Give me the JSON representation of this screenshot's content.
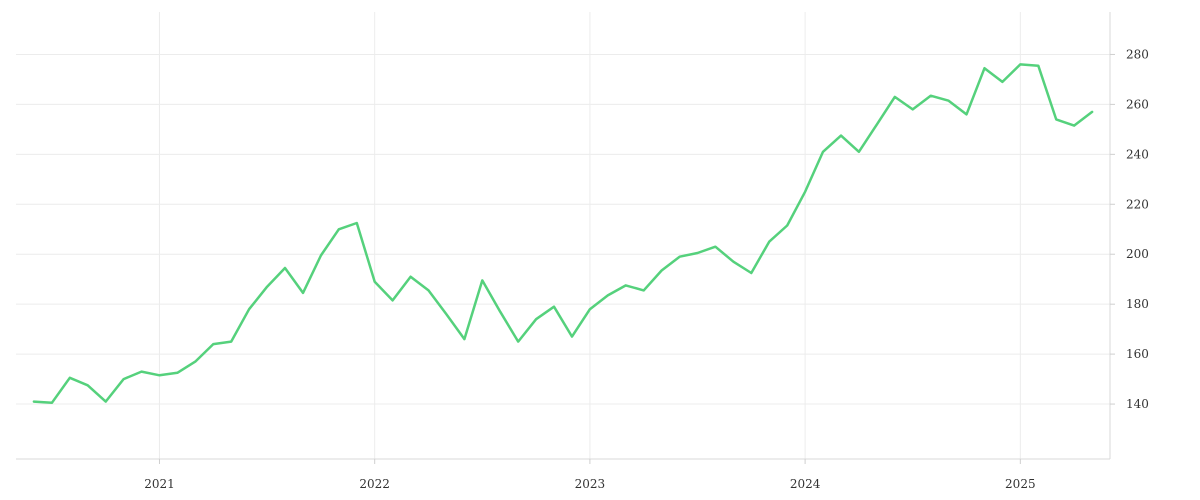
{
  "chart_data": {
    "type": "line",
    "title": "",
    "xlabel": "",
    "ylabel": "",
    "x_ticks": [
      "2021",
      "2022",
      "2023",
      "2024",
      "2025"
    ],
    "y_ticks": [
      140,
      160,
      180,
      200,
      220,
      240,
      260,
      280
    ],
    "xlim": [
      "2020-05-01",
      "2025-06-01"
    ],
    "ylim": [
      118,
      297
    ],
    "grid": true,
    "legend": "none",
    "y_axis_side": "right",
    "color": "#55d17c",
    "series": [
      {
        "x": [
          "2020-06",
          "2020-07",
          "2020-08",
          "2020-09",
          "2020-10",
          "2020-11",
          "2020-12",
          "2021-01",
          "2021-02",
          "2021-03",
          "2021-04",
          "2021-05",
          "2021-06",
          "2021-07",
          "2021-08",
          "2021-09",
          "2021-10",
          "2021-11",
          "2021-12",
          "2022-01",
          "2022-02",
          "2022-03",
          "2022-04",
          "2022-05",
          "2022-06",
          "2022-07",
          "2022-08",
          "2022-09",
          "2022-10",
          "2022-11",
          "2022-12",
          "2023-01",
          "2023-02",
          "2023-03",
          "2023-04",
          "2023-05",
          "2023-06",
          "2023-07",
          "2023-08",
          "2023-09",
          "2023-10",
          "2023-11",
          "2023-12",
          "2024-01",
          "2024-02",
          "2024-03",
          "2024-04",
          "2024-05",
          "2024-06",
          "2024-07",
          "2024-08",
          "2024-09",
          "2024-10",
          "2024-11",
          "2024-12",
          "2025-01",
          "2025-02",
          "2025-03",
          "2025-04",
          "2025-05"
        ],
        "values": [
          141,
          140.5,
          150.5,
          147.5,
          141,
          150,
          153,
          151.5,
          152.5,
          157,
          164,
          165,
          178,
          187,
          194.5,
          184.5,
          199.5,
          210,
          212.5,
          189,
          181.5,
          191,
          185.5,
          176,
          166,
          189.5,
          177,
          165,
          174,
          179,
          167,
          178,
          183.5,
          187.5,
          185.5,
          193.5,
          199,
          200.5,
          203,
          197,
          192.5,
          205,
          211.5,
          225,
          241,
          247.5,
          241,
          252,
          263,
          258,
          263.5,
          261.5,
          256,
          274.5,
          269,
          276,
          275.5,
          254,
          251.5,
          257
        ]
      }
    ]
  }
}
